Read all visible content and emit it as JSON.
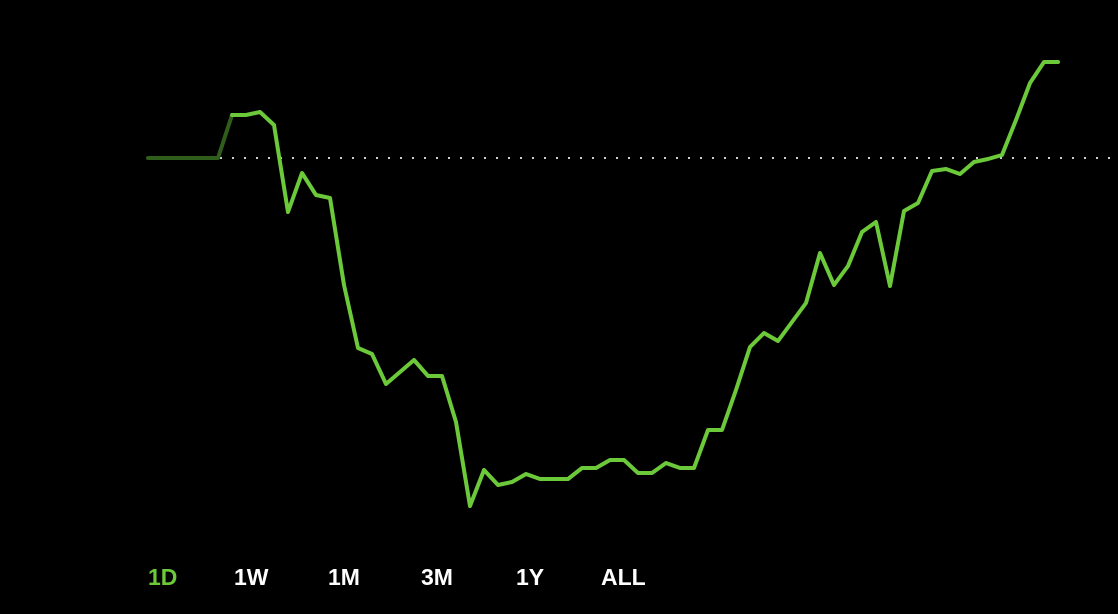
{
  "chart_data": {
    "type": "line",
    "ylim": [
      0,
      600
    ],
    "baseline": 442,
    "baseline_color": "#cfcfcf",
    "series": [
      {
        "color": "#2f5d1c",
        "values": [
          442,
          442,
          442,
          442,
          442,
          442,
          485,
          null,
          null,
          null,
          null,
          null,
          null,
          null,
          null,
          null,
          null,
          null,
          null,
          null,
          null,
          null,
          null,
          null,
          null,
          null,
          null,
          null,
          null,
          null,
          null,
          null,
          null,
          null,
          null,
          null,
          null,
          null,
          null,
          null,
          null,
          null,
          null,
          null,
          null,
          null,
          null,
          null,
          null,
          null,
          null,
          null,
          null,
          null,
          null,
          null,
          null,
          null,
          null,
          null,
          null,
          null,
          null,
          null,
          null,
          null
        ]
      },
      {
        "color": "#6cc93a",
        "values": [
          null,
          null,
          null,
          null,
          null,
          null,
          485,
          485,
          488,
          475,
          388,
          427,
          405,
          402,
          315,
          252,
          246,
          216,
          228,
          240,
          224,
          224,
          178,
          94,
          130,
          115,
          118,
          126,
          121,
          121,
          121,
          132,
          132,
          140,
          140,
          127,
          127,
          137,
          132,
          132,
          170,
          170,
          210,
          253,
          267,
          259,
          278,
          297,
          347,
          315,
          334,
          368,
          378,
          314,
          389,
          397,
          429,
          431,
          426,
          438,
          441,
          445,
          480,
          517,
          538,
          538
        ]
      }
    ]
  },
  "range_selector": {
    "options": [
      "1D",
      "1W",
      "1M",
      "3M",
      "1Y",
      "ALL"
    ],
    "active": 0,
    "active_color": "#6cc93a",
    "color": "#ffffff"
  }
}
